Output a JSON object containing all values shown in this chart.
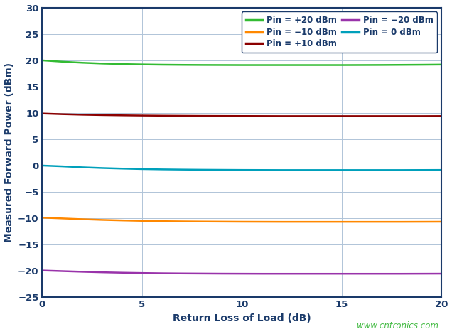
{
  "title": "",
  "xlabel": "Return Loss of Load (dB)",
  "ylabel": "Measured Forward Power (dBm)",
  "xlim": [
    0,
    20
  ],
  "ylim": [
    -25,
    30
  ],
  "xticks": [
    0,
    5,
    10,
    15,
    20
  ],
  "yticks": [
    -25,
    -20,
    -15,
    -10,
    -5,
    0,
    5,
    10,
    15,
    20,
    25,
    30
  ],
  "series": [
    {
      "label": "Pin = +20 dBm",
      "color": "#33bb33",
      "x": [
        0,
        1,
        2,
        3,
        4,
        5,
        6,
        7,
        8,
        9,
        10,
        11,
        12,
        13,
        14,
        15,
        16,
        17,
        18,
        19,
        20
      ],
      "y": [
        19.95,
        19.7,
        19.5,
        19.35,
        19.25,
        19.18,
        19.13,
        19.1,
        19.08,
        19.07,
        19.06,
        19.06,
        19.06,
        19.06,
        19.06,
        19.06,
        19.07,
        19.08,
        19.1,
        19.12,
        19.15
      ]
    },
    {
      "label": "Pin = +10 dBm",
      "color": "#8b0000",
      "x": [
        0,
        1,
        2,
        3,
        4,
        5,
        6,
        7,
        8,
        9,
        10,
        11,
        12,
        13,
        14,
        15,
        16,
        17,
        18,
        19,
        20
      ],
      "y": [
        9.85,
        9.72,
        9.62,
        9.55,
        9.5,
        9.46,
        9.43,
        9.41,
        9.39,
        9.38,
        9.37,
        9.36,
        9.35,
        9.35,
        9.35,
        9.35,
        9.35,
        9.35,
        9.35,
        9.35,
        9.36
      ]
    },
    {
      "label": "Pin = 0 dBm",
      "color": "#00a0bb",
      "x": [
        0,
        1,
        2,
        3,
        4,
        5,
        6,
        7,
        8,
        9,
        10,
        11,
        12,
        13,
        14,
        15,
        16,
        17,
        18,
        19,
        20
      ],
      "y": [
        -0.05,
        -0.2,
        -0.38,
        -0.52,
        -0.63,
        -0.72,
        -0.78,
        -0.82,
        -0.85,
        -0.87,
        -0.89,
        -0.9,
        -0.91,
        -0.91,
        -0.91,
        -0.91,
        -0.91,
        -0.91,
        -0.91,
        -0.9,
        -0.89
      ]
    },
    {
      "label": "Pin = −10 dBm",
      "color": "#ff8800",
      "x": [
        0,
        1,
        2,
        3,
        4,
        5,
        6,
        7,
        8,
        9,
        10,
        11,
        12,
        13,
        14,
        15,
        16,
        17,
        18,
        19,
        20
      ],
      "y": [
        -9.95,
        -10.1,
        -10.25,
        -10.38,
        -10.48,
        -10.56,
        -10.62,
        -10.66,
        -10.69,
        -10.71,
        -10.73,
        -10.74,
        -10.75,
        -10.75,
        -10.75,
        -10.75,
        -10.75,
        -10.75,
        -10.75,
        -10.74,
        -10.73
      ]
    },
    {
      "label": "Pin = −20 dBm",
      "color": "#9933aa",
      "x": [
        0,
        1,
        2,
        3,
        4,
        5,
        6,
        7,
        8,
        9,
        10,
        11,
        12,
        13,
        14,
        15,
        16,
        17,
        18,
        19,
        20
      ],
      "y": [
        -20.0,
        -20.12,
        -20.24,
        -20.34,
        -20.42,
        -20.48,
        -20.53,
        -20.56,
        -20.58,
        -20.6,
        -20.61,
        -20.62,
        -20.62,
        -20.62,
        -20.62,
        -20.62,
        -20.62,
        -20.62,
        -20.62,
        -20.61,
        -20.6
      ]
    }
  ],
  "background_color": "#ffffff",
  "plot_bg_color": "#ffffff",
  "grid_color": "#b0c4d8",
  "watermark": "www.cntronics.com",
  "watermark_color": "#44bb44",
  "axis_color": "#1a3a6a",
  "tick_color": "#1a3a6a",
  "label_color": "#1a3a6a",
  "legend_text_color": "#1a3a6a"
}
